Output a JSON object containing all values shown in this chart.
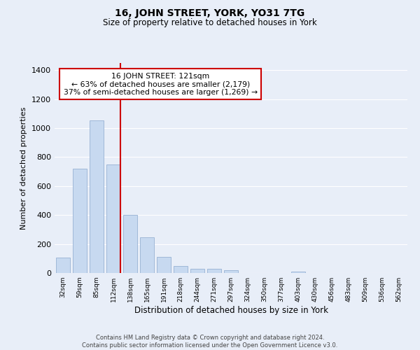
{
  "title": "16, JOHN STREET, YORK, YO31 7TG",
  "subtitle": "Size of property relative to detached houses in York",
  "xlabel": "Distribution of detached houses by size in York",
  "ylabel": "Number of detached properties",
  "bar_labels": [
    "32sqm",
    "59sqm",
    "85sqm",
    "112sqm",
    "138sqm",
    "165sqm",
    "191sqm",
    "218sqm",
    "244sqm",
    "271sqm",
    "297sqm",
    "324sqm",
    "350sqm",
    "377sqm",
    "403sqm",
    "430sqm",
    "456sqm",
    "483sqm",
    "509sqm",
    "536sqm",
    "562sqm"
  ],
  "bar_values": [
    107,
    720,
    1055,
    750,
    400,
    245,
    110,
    50,
    27,
    27,
    20,
    0,
    0,
    0,
    10,
    0,
    0,
    0,
    0,
    0,
    0
  ],
  "bar_color": "#c7d9f0",
  "bar_edge_color": "#a0b8d8",
  "vline_index": 3,
  "vline_color": "#cc0000",
  "annotation_title": "16 JOHN STREET: 121sqm",
  "annotation_line1": "← 63% of detached houses are smaller (2,179)",
  "annotation_line2": "37% of semi-detached houses are larger (1,269) →",
  "annotation_box_color": "#ffffff",
  "annotation_box_edge": "#cc0000",
  "ylim": [
    0,
    1450
  ],
  "yticks": [
    0,
    200,
    400,
    600,
    800,
    1000,
    1200,
    1400
  ],
  "footer_line1": "Contains HM Land Registry data © Crown copyright and database right 2024.",
  "footer_line2": "Contains public sector information licensed under the Open Government Licence v3.0.",
  "bg_color": "#e8eef8"
}
